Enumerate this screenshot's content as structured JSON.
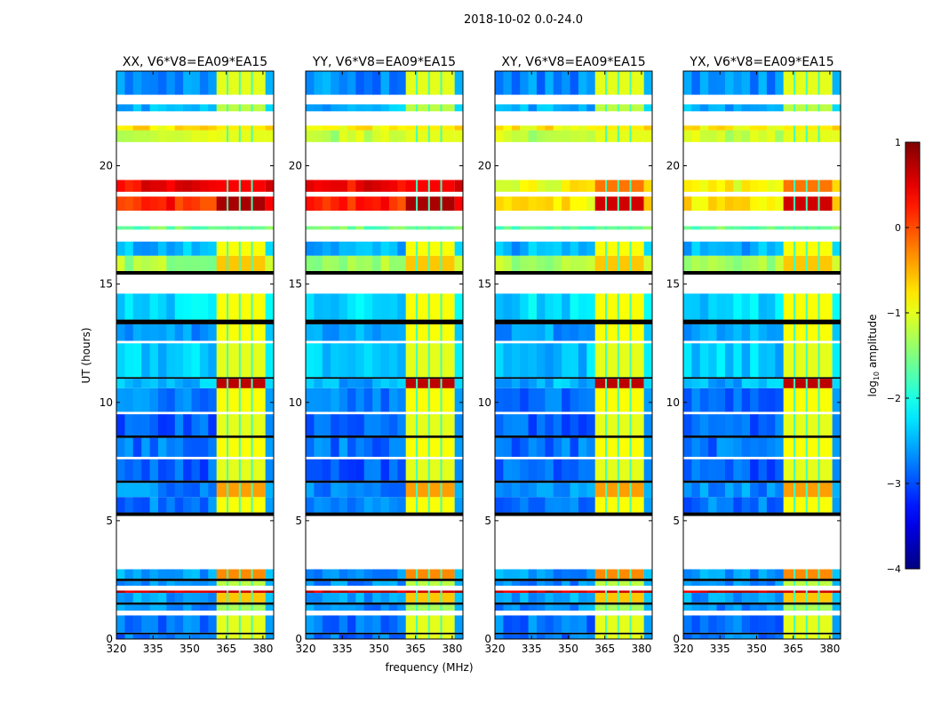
{
  "chart_data": {
    "type": "heatmap",
    "title": "2018-10-02 0.0-24.0",
    "xlabel": "frequency (MHz)",
    "ylabel": "UT (hours)",
    "xlim": [
      320,
      384.4
    ],
    "ylim": [
      0,
      24
    ],
    "xticks": [
      "320",
      "335",
      "350",
      "365",
      "380"
    ],
    "xtick_values": [
      320,
      335,
      350,
      365,
      380
    ],
    "yticks": [
      "0",
      "5",
      "10",
      "15",
      "20"
    ],
    "ytick_values": [
      0,
      5,
      10,
      15,
      20
    ],
    "panels": [
      {
        "title": "XX, V6*V8=EA09*EA15",
        "cross": false
      },
      {
        "title": "YY, V6*V8=EA09*EA15",
        "cross": false
      },
      {
        "title": "XY, V6*V8=EA09*EA15",
        "cross": true
      },
      {
        "title": "YX, V6*V8=EA09*EA15",
        "cross": true
      }
    ],
    "rfi_band_mhz": [
      361,
      381
    ],
    "rfi_channel_gaps_mhz": [
      365.5,
      370.5,
      375.5
    ],
    "time_bands": [
      {
        "t": [
          0,
          0.2
        ],
        "base": -2.8,
        "rfi": -1.0
      },
      {
        "t": [
          0.2,
          0.27
        ],
        "flag": "black"
      },
      {
        "t": [
          0.27,
          1.0
        ],
        "base": -2.8,
        "rfi": -1.0
      },
      {
        "t": [
          1.0,
          1.2
        ],
        "flag": "white"
      },
      {
        "t": [
          1.2,
          1.45
        ],
        "base": -2.7,
        "rfi": -1.3
      },
      {
        "t": [
          1.45,
          1.55
        ],
        "flag": "black"
      },
      {
        "t": [
          1.55,
          1.95
        ],
        "base": -2.6,
        "rfi": -0.6
      },
      {
        "t": [
          1.95,
          2.05
        ],
        "base": 0.6,
        "rfi": 0.6
      },
      {
        "t": [
          2.05,
          2.25
        ],
        "flag": "white"
      },
      {
        "t": [
          2.25,
          2.45
        ],
        "base": -2.7,
        "rfi": -1.2
      },
      {
        "t": [
          2.45,
          2.55
        ],
        "flag": "black"
      },
      {
        "t": [
          2.55,
          2.95
        ],
        "base": -2.6,
        "rfi": -0.3
      },
      {
        "t": [
          2.95,
          5.2
        ],
        "flag": "white"
      },
      {
        "t": [
          5.2,
          5.35
        ],
        "flag": "black"
      },
      {
        "t": [
          5.35,
          6.0
        ],
        "base": -2.8,
        "rfi": -0.9
      },
      {
        "t": [
          6.0,
          6.6
        ],
        "base": -2.7,
        "rfi": -0.4
      },
      {
        "t": [
          6.6,
          6.7
        ],
        "flag": "black"
      },
      {
        "t": [
          6.7,
          7.6
        ],
        "base": -2.9,
        "rfi": -1.0
      },
      {
        "t": [
          7.6,
          7.7
        ],
        "flag": "white"
      },
      {
        "t": [
          7.7,
          8.5
        ],
        "base": -2.8,
        "rfi": -0.9
      },
      {
        "t": [
          8.5,
          8.6
        ],
        "flag": "black"
      },
      {
        "t": [
          8.6,
          9.5
        ],
        "base": -2.9,
        "rfi": -1.0
      },
      {
        "t": [
          9.5,
          9.6
        ],
        "flag": "white"
      },
      {
        "t": [
          9.6,
          10.6
        ],
        "base": -2.8,
        "rfi": -0.9
      },
      {
        "t": [
          10.6,
          11.0
        ],
        "base": -2.5,
        "rfi": 0.7
      },
      {
        "t": [
          11.0,
          11.07
        ],
        "flag": "black"
      },
      {
        "t": [
          11.07,
          12.5
        ],
        "base": -2.4,
        "rfi": -1.0
      },
      {
        "t": [
          12.5,
          12.6
        ],
        "flag": "white"
      },
      {
        "t": [
          12.6,
          13.3
        ],
        "base": -2.6,
        "rfi": -0.9
      },
      {
        "t": [
          13.3,
          13.5
        ],
        "flag": "black"
      },
      {
        "t": [
          13.5,
          14.6
        ],
        "base": -2.3,
        "rfi": -0.9
      },
      {
        "t": [
          14.6,
          15.4
        ],
        "flag": "white"
      },
      {
        "t": [
          15.4,
          15.55
        ],
        "flag": "black"
      },
      {
        "t": [
          15.55,
          16.2
        ],
        "base": -1.3,
        "rfi": -0.6
      },
      {
        "t": [
          16.2,
          16.8
        ],
        "base": -2.5,
        "rfi": -0.9
      },
      {
        "t": [
          16.8,
          17.3
        ],
        "flag": "white"
      },
      {
        "t": [
          17.3,
          17.45
        ],
        "base": -1.6,
        "rfi": -1.6
      },
      {
        "t": [
          17.45,
          18.1
        ],
        "flag": "white"
      },
      {
        "t": [
          18.1,
          18.7
        ],
        "base": 0.2,
        "rfi": 0.8,
        "cross_base": -0.8,
        "cross_rfi": 0.6
      },
      {
        "t": [
          18.7,
          18.9
        ],
        "flag": "white"
      },
      {
        "t": [
          18.9,
          19.4
        ],
        "base": 0.4,
        "rfi": 0.4,
        "cross_base": -0.9,
        "cross_rfi": -0.2
      },
      {
        "t": [
          19.4,
          21.0
        ],
        "flag": "white"
      },
      {
        "t": [
          21.0,
          21.5
        ],
        "base": -1.2,
        "rfi": -1.0
      },
      {
        "t": [
          21.5,
          21.7
        ],
        "base": -0.8,
        "rfi": -0.8
      },
      {
        "t": [
          21.7,
          22.3
        ],
        "flag": "white"
      },
      {
        "t": [
          22.3,
          22.6
        ],
        "base": -2.5,
        "rfi": -1.2
      },
      {
        "t": [
          22.6,
          23.0
        ],
        "flag": "white"
      },
      {
        "t": [
          23.0,
          24.0
        ],
        "base": -2.7,
        "rfi": -1.0
      }
    ],
    "colorbar": {
      "label_main": "log",
      "label_sub": "10",
      "label_tail": " amplitude",
      "range": [
        -4,
        1
      ],
      "ticks": [
        "1",
        "0",
        "−1",
        "−2",
        "−3",
        "−4"
      ],
      "tick_values": [
        1,
        0,
        -1,
        -2,
        -3,
        -4
      ],
      "colormap": "jet"
    }
  }
}
